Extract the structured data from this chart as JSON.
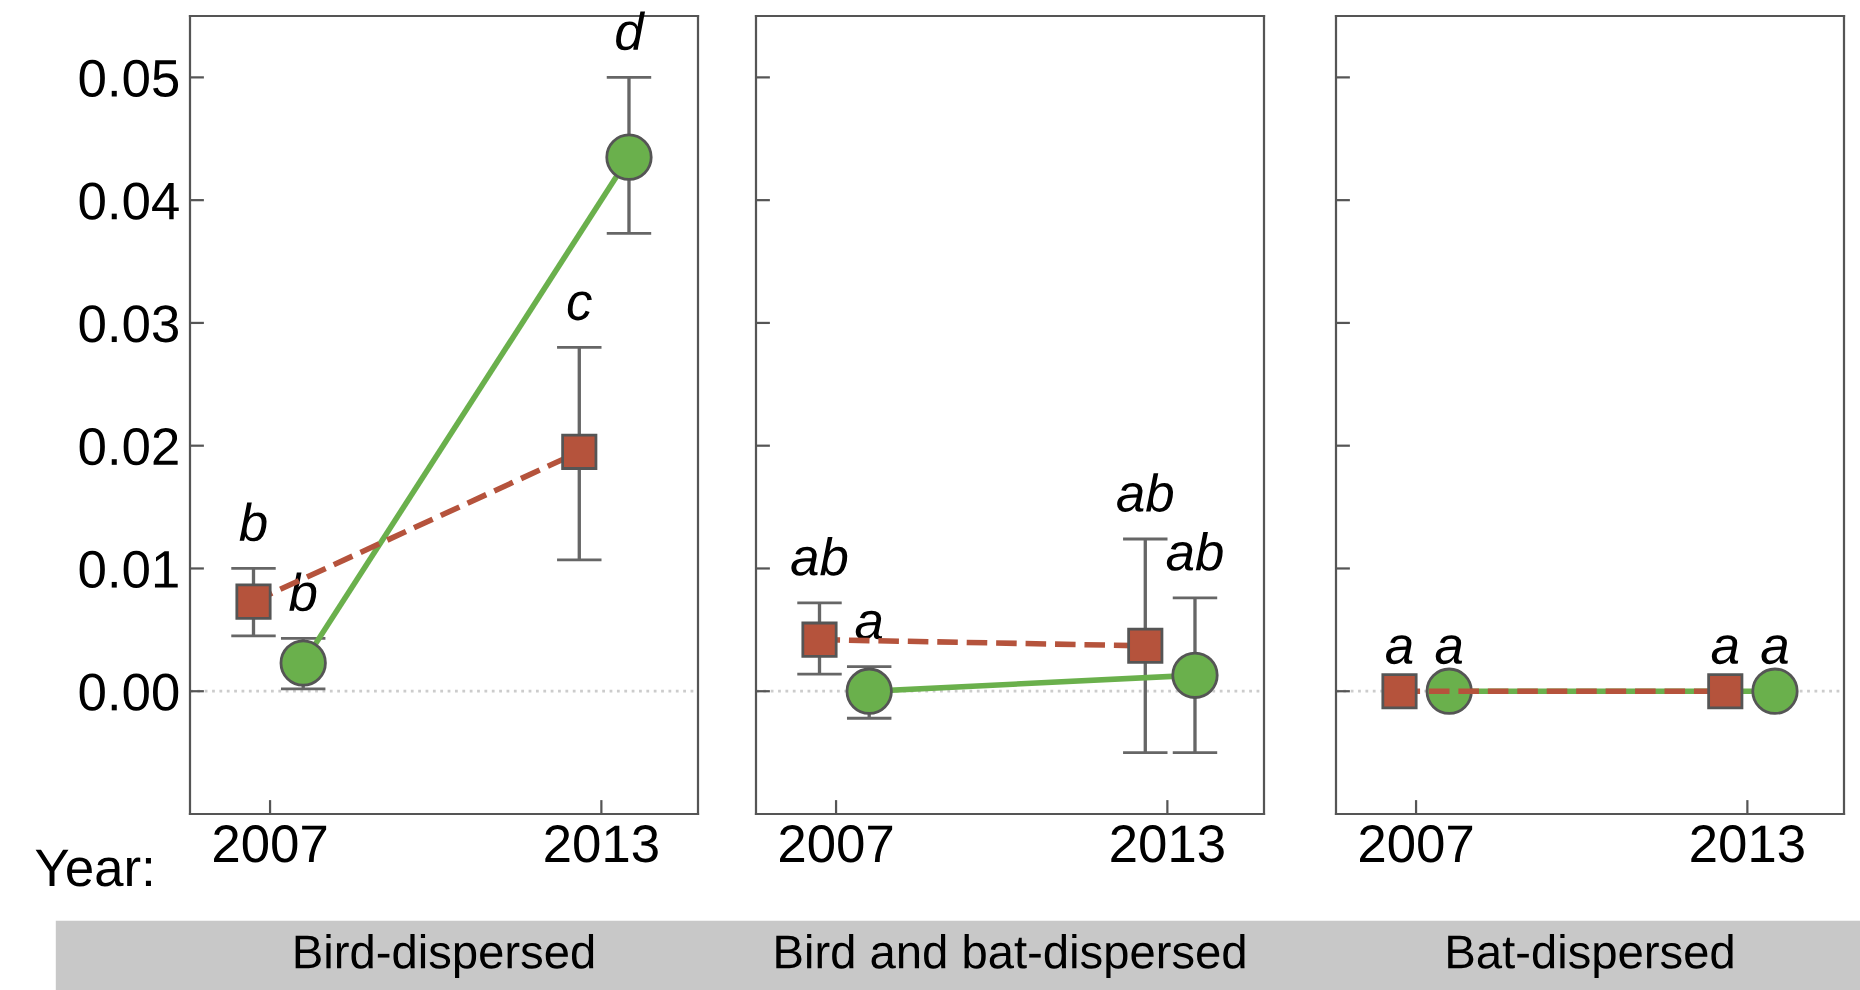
{
  "chart_data": [
    {
      "type": "line",
      "xlabel": "Bird-dispersed",
      "xlim": [
        2005.55,
        2014.75
      ],
      "xticks": [
        2007,
        2013
      ],
      "ylim": [
        -0.01,
        0.055
      ],
      "yticks": [
        {
          "value": 0,
          "label": "0.00"
        },
        0.01,
        0.02,
        0.03,
        0.04,
        0.05
      ],
      "grid": false,
      "ref_lines": [
        {
          "axis": "y",
          "value": 0,
          "color": "#cccccc",
          "line_style": "dotted"
        }
      ],
      "series": [
        {
          "x": [
            2006.7,
            2012.6
          ],
          "values": [
            0.0073,
            0.0195
          ],
          "errors": [
            [
              0.0045,
              0.01
            ],
            [
              0.0107,
              0.028
            ]
          ],
          "color": "#b5533c",
          "marker": "square",
          "line_style": "dashed"
        },
        {
          "x": [
            2007.6,
            2013.5
          ],
          "values": [
            0.0023,
            0.0435
          ],
          "errors": [
            [
              0.0002,
              0.0043
            ],
            [
              0.0373,
              0.05
            ]
          ],
          "color": "#6ab04c",
          "marker": "circle",
          "line_style": "solid"
        }
      ],
      "annotations": [
        "Year:",
        {
          "text": "b",
          "x": 2006.7,
          "y": 0.01
        },
        {
          "text": "b",
          "x": 2007.6,
          "y": 0.0043
        },
        {
          "text": "c",
          "x": 2012.6,
          "y": 0.028
        },
        {
          "text": "d",
          "x": 2013.5,
          "y": 0.05
        }
      ]
    },
    {
      "type": "line",
      "xlabel": "Bird and bat-dispersed",
      "xlim": [
        2005.55,
        2014.75
      ],
      "xticks": [
        2007,
        2013
      ],
      "ylim": [
        -0.01,
        0.055
      ],
      "yticks": [
        0,
        0.01,
        0.02,
        0.03,
        0.04,
        0.05
      ],
      "tick_labels": "x",
      "grid": false,
      "ref_lines": [
        {
          "axis": "y",
          "value": 0,
          "color": "#cccccc",
          "line_style": "dotted"
        }
      ],
      "series": [
        {
          "x": [
            2006.7,
            2012.6
          ],
          "values": [
            0.0042,
            0.0037
          ],
          "errors": [
            [
              0.0014,
              0.0072
            ],
            [
              -0.005,
              0.0124
            ]
          ],
          "color": "#b5533c",
          "marker": "square",
          "line_style": "dashed"
        },
        {
          "x": [
            2007.6,
            2013.5
          ],
          "values": [
            0,
            0.0013
          ],
          "errors": [
            [
              -0.0022,
              0.002
            ],
            [
              -0.005,
              0.0076
            ]
          ],
          "color": "#6ab04c",
          "marker": "circle",
          "line_style": "solid"
        }
      ],
      "annotations": [
        {
          "text": "ab",
          "x": 2006.7,
          "y": 0.0072
        },
        {
          "text": "a",
          "x": 2007.6,
          "y": 0.002
        },
        {
          "text": "ab",
          "x": 2012.6,
          "y": 0.0124
        },
        {
          "text": "ab",
          "x": 2013.5,
          "y": 0.0076
        }
      ]
    },
    {
      "type": "line",
      "xlabel": "Bat-dispersed",
      "xlim": [
        2005.55,
        2014.75
      ],
      "xticks": [
        2007,
        2013
      ],
      "ylim": [
        -0.01,
        0.055
      ],
      "yticks": [
        0,
        0.01,
        0.02,
        0.03,
        0.04,
        0.05
      ],
      "tick_labels": "x",
      "grid": false,
      "ref_lines": [
        {
          "axis": "y",
          "value": 0,
          "color": "#cccccc",
          "line_style": "dotted"
        }
      ],
      "series": [
        {
          "x": [
            2006.7,
            2012.6
          ],
          "values": [
            0,
            0
          ],
          "color": "#b5533c",
          "marker": "square",
          "line_style": "dashed"
        },
        {
          "x": [
            2007.6,
            2013.5
          ],
          "values": [
            0,
            0
          ],
          "color": "#6ab04c",
          "marker": "circle",
          "line_style": "solid"
        }
      ],
      "annotations": [
        {
          "text": "a",
          "x": 2006.7,
          "y": 0
        },
        {
          "text": "a",
          "x": 2007.6,
          "y": 0
        },
        {
          "text": "a",
          "x": 2012.6,
          "y": 0
        },
        {
          "text": "a",
          "x": 2013.5,
          "y": 0
        }
      ]
    }
  ]
}
